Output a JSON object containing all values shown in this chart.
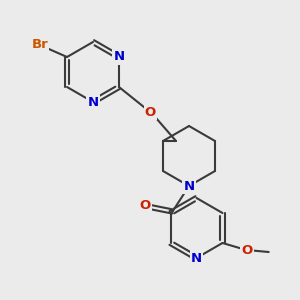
{
  "bg_color": "#ebebeb",
  "bond_color": "#3a3a3a",
  "bond_width": 1.5,
  "atom_colors": {
    "Br": "#cc5500",
    "N": "#0000cc",
    "O": "#cc2200",
    "C": "#3a3a3a"
  },
  "font_size": 9.5,
  "dbo": 0.055
}
